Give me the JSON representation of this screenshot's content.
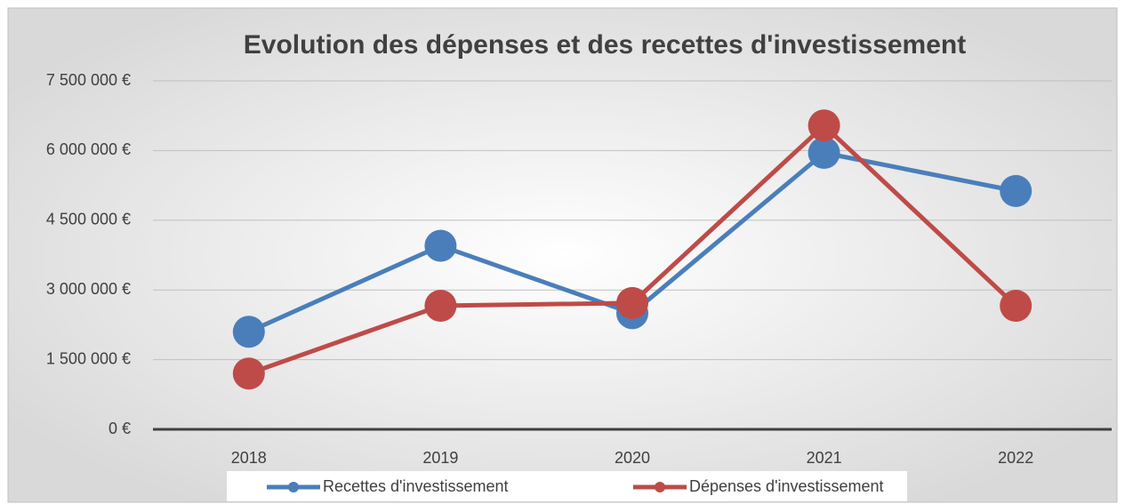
{
  "chart_data": {
    "type": "line",
    "title": "Evolution des dépenses et des recettes d'investissement",
    "categories": [
      "2018",
      "2019",
      "2020",
      "2021",
      "2022"
    ],
    "series": [
      {
        "name": "Recettes d'investissement",
        "color": "#4a7ebb",
        "values": [
          2100000,
          3950000,
          2500000,
          5950000,
          5130000
        ]
      },
      {
        "name": "Dépenses d'investissement",
        "color": "#be4b48",
        "values": [
          1200000,
          2660000,
          2720000,
          6540000,
          2660000
        ]
      }
    ],
    "ylim": [
      0,
      7500000
    ],
    "yticks": [
      {
        "value": 0,
        "label": "0 €"
      },
      {
        "value": 1500000,
        "label": "1 500 000 €"
      },
      {
        "value": 3000000,
        "label": "3 000 000 €"
      },
      {
        "value": 4500000,
        "label": "4 500 000 €"
      },
      {
        "value": 6000000,
        "label": "6 000 000 €"
      },
      {
        "value": 7500000,
        "label": "7 500 000 €"
      }
    ],
    "grid": true,
    "legend": "bottom"
  }
}
